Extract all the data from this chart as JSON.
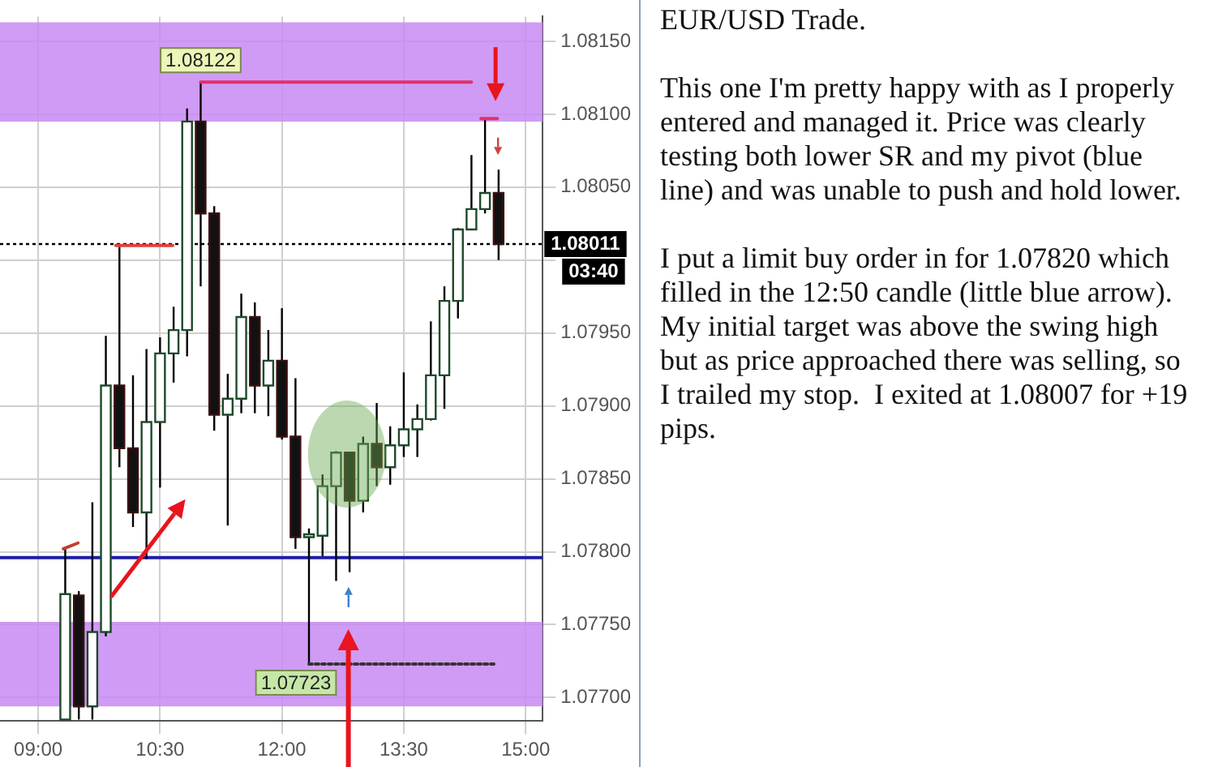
{
  "chart_data": {
    "type": "candlestick",
    "title": "EUR/USD Trade.",
    "x": [
      9.333,
      9.5,
      9.667,
      9.833,
      10,
      10.167,
      10.333,
      10.5,
      10.667,
      10.833,
      11,
      11.167,
      11.333,
      11.5,
      11.667,
      11.833,
      12,
      12.167,
      12.333,
      12.5,
      12.667,
      12.833,
      13,
      13.167,
      13.333,
      13.5,
      13.667,
      13.833,
      14,
      14.167,
      14.333,
      14.5,
      14.667
    ],
    "ohlc": [
      [
        1.07685,
        1.07803,
        1.07685,
        1.07771
      ],
      [
        1.0777,
        1.07773,
        1.07685,
        1.07694
      ],
      [
        1.07694,
        1.07834,
        1.07685,
        1.07745
      ],
      [
        1.07745,
        1.07948,
        1.07742,
        1.07914
      ],
      [
        1.07914,
        1.0801,
        1.07858,
        1.07871
      ],
      [
        1.07871,
        1.07921,
        1.07817,
        1.07827
      ],
      [
        1.07827,
        1.07939,
        1.07795,
        1.07889
      ],
      [
        1.07889,
        1.07947,
        1.07844,
        1.07936
      ],
      [
        1.07936,
        1.07968,
        1.07916,
        1.07952
      ],
      [
        1.07952,
        1.08104,
        1.07934,
        1.08095
      ],
      [
        1.08095,
        1.08122,
        1.07982,
        1.08032
      ],
      [
        1.08032,
        1.08037,
        1.07883,
        1.07894
      ],
      [
        1.07894,
        1.07922,
        1.07818,
        1.07905
      ],
      [
        1.07905,
        1.07977,
        1.07895,
        1.07961
      ],
      [
        1.07961,
        1.07971,
        1.07895,
        1.07914
      ],
      [
        1.07914,
        1.07952,
        1.07893,
        1.07931
      ],
      [
        1.07931,
        1.07967,
        1.07877,
        1.07879
      ],
      [
        1.07879,
        1.07919,
        1.07802,
        1.0781
      ],
      [
        1.0781,
        1.07816,
        1.07723,
        1.07812
      ],
      [
        1.07811,
        1.07853,
        1.07797,
        1.07845
      ],
      [
        1.07845,
        1.07869,
        1.0778,
        1.07868
      ],
      [
        1.07868,
        1.07868,
        1.07786,
        1.07835
      ],
      [
        1.07835,
        1.07879,
        1.07827,
        1.07874
      ],
      [
        1.07874,
        1.07902,
        1.07845,
        1.07858
      ],
      [
        1.07858,
        1.07886,
        1.07846,
        1.07873
      ],
      [
        1.07873,
        1.07923,
        1.07865,
        1.07884
      ],
      [
        1.07884,
        1.07901,
        1.07865,
        1.07891
      ],
      [
        1.07891,
        1.07958,
        1.0789,
        1.07921
      ],
      [
        1.07921,
        1.07982,
        1.07898,
        1.07972
      ],
      [
        1.07972,
        1.08022,
        1.0796,
        1.08021
      ],
      [
        1.08021,
        1.08072,
        1.08021,
        1.08035
      ],
      [
        1.08035,
        1.08097,
        1.08032,
        1.08046
      ],
      [
        1.08046,
        1.08062,
        1.08,
        1.08011
      ]
    ],
    "series": [
      {
        "type": "line",
        "color": "#e0306a",
        "x": [
          11,
          14.333
        ],
        "values": [
          1.08122,
          1.08122
        ]
      },
      {
        "type": "line",
        "color": "#e04040",
        "x": [
          9.955,
          10.656
        ],
        "values": [
          1.0801,
          1.0801
        ]
      },
      {
        "type": "line",
        "color": "#e0306a",
        "x": [
          14.45,
          14.65
        ],
        "values": [
          1.08097,
          1.08097
        ]
      },
      {
        "type": "line",
        "color": "#c04030",
        "x": [
          9.31,
          9.49
        ],
        "values": [
          1.07802,
          1.07806
        ]
      },
      {
        "type": "line",
        "color": "#333333",
        "line_style": "dotted",
        "x": [
          12.333,
          14.63
        ],
        "values": [
          1.07723,
          1.07723
        ]
      }
    ],
    "marker": "none",
    "xlim": [
      8.53,
      15.21
    ],
    "xticks": [
      {
        "value": 9,
        "label": "09:00"
      },
      {
        "value": 10.5,
        "label": "10:30"
      },
      {
        "value": 12,
        "label": "12:00"
      },
      {
        "value": 13.5,
        "label": "13:30"
      },
      {
        "value": 15,
        "label": "15:00"
      }
    ],
    "ylim": [
      1.07684,
      1.08167
    ],
    "yticks": [
      {
        "value": 1.077,
        "label": "1.07700"
      },
      {
        "value": 1.0775,
        "label": "1.07750"
      },
      {
        "value": 1.078,
        "label": "1.07800"
      },
      {
        "value": 1.0785,
        "label": "1.07850"
      },
      {
        "value": 1.079,
        "label": "1.07900"
      },
      {
        "value": 1.0795,
        "label": "1.07950"
      },
      {
        "value": 1.08,
        "label": null
      },
      {
        "value": 1.0805,
        "label": "1.08050"
      },
      {
        "value": 1.081,
        "label": "1.08100"
      },
      {
        "value": 1.0815,
        "label": "1.08150"
      }
    ],
    "grid": true,
    "bands": [
      {
        "axis": "y",
        "from": 1.08095,
        "to": 1.08163,
        "color": "#c88af2"
      },
      {
        "axis": "y",
        "from": 1.07694,
        "to": 1.07752,
        "color": "#c88af2"
      }
    ],
    "ref_lines": [
      {
        "axis": "y",
        "value": 1.08011,
        "label": "1.08011",
        "color": "#000000",
        "line_style": "dotted"
      },
      {
        "axis": "y",
        "value": 1.07796,
        "color": "#1c1ca8",
        "line_style": "solid"
      }
    ],
    "annotations": [
      {
        "text": "1.08122",
        "x": 11,
        "y": 1.08122
      },
      {
        "text": "1.07723",
        "x": 12.333,
        "y": 1.07723
      },
      "03:40",
      "This one I'm pretty happy with as I properly entered and managed it. Price was clearly testing both lower SR and my pivot (blue line) and was unable to push and hold lower.",
      "I put a limit buy order in for 1.07820 which filled in the 12:50 candle (little blue arrow).  My initial target was above the swing high but as price approached there was selling, so I trailed my stop.  I exited at 1.08007 for +19 pips."
    ]
  }
}
